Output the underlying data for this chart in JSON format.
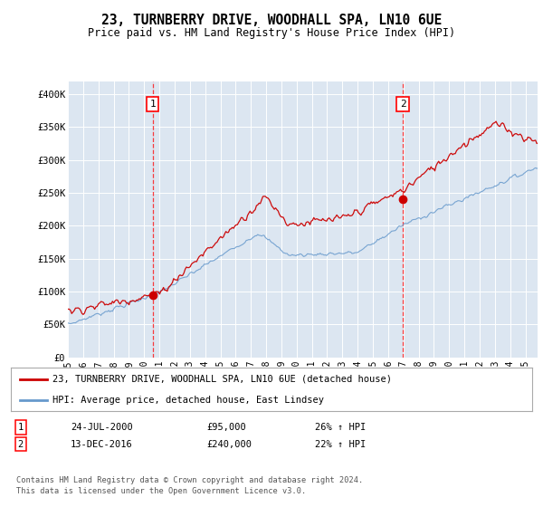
{
  "title": "23, TURNBERRY DRIVE, WOODHALL SPA, LN10 6UE",
  "subtitle": "Price paid vs. HM Land Registry's House Price Index (HPI)",
  "bg_color": "#dce6f1",
  "red_line_color": "#cc0000",
  "blue_line_color": "#6699cc",
  "ylim": [
    0,
    420000
  ],
  "yticks": [
    0,
    50000,
    100000,
    150000,
    200000,
    250000,
    300000,
    350000,
    400000
  ],
  "ytick_labels": [
    "£0",
    "£50K",
    "£100K",
    "£150K",
    "£200K",
    "£250K",
    "£300K",
    "£350K",
    "£400K"
  ],
  "marker1_year": 2000.56,
  "marker1_value": 95000,
  "marker2_year": 2016.96,
  "marker2_value": 240000,
  "legend_line1": "23, TURNBERRY DRIVE, WOODHALL SPA, LN10 6UE (detached house)",
  "legend_line2": "HPI: Average price, detached house, East Lindsey",
  "annotation1_date": "24-JUL-2000",
  "annotation1_price": "£95,000",
  "annotation1_hpi": "26% ↑ HPI",
  "annotation2_date": "13-DEC-2016",
  "annotation2_price": "£240,000",
  "annotation2_hpi": "22% ↑ HPI",
  "footer": "Contains HM Land Registry data © Crown copyright and database right 2024.\nThis data is licensed under the Open Government Licence v3.0."
}
